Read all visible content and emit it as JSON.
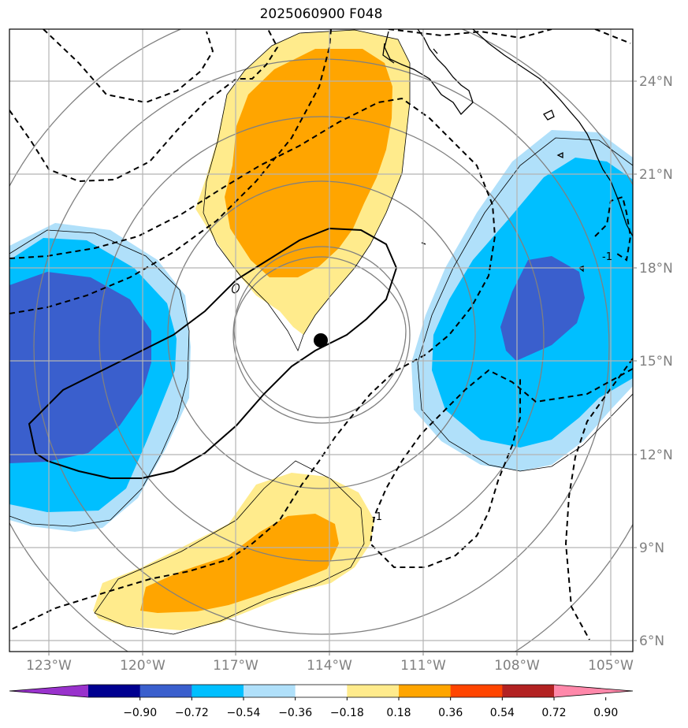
{
  "title": "2025060900 F048",
  "map": {
    "lat_labels": [
      "24°N",
      "21°N",
      "18°N",
      "15°N",
      "12°N",
      "9°N",
      "6°N"
    ],
    "lon_labels": [
      "123°W",
      "120°W",
      "117°W",
      "114°W",
      "111°W",
      "108°W",
      "105°W"
    ],
    "contour_labels": [
      "-1",
      "-1"
    ],
    "marker": "storm-center",
    "colors": {
      "strong_neg": "#3a5fcd",
      "mid_neg": "#00bfff",
      "weak_neg": "#b0e0fa",
      "weak_pos": "#ffeb8c",
      "mid_pos": "#ffa500"
    }
  },
  "colorbar": {
    "ticks": [
      "−0.90",
      "−0.72",
      "−0.54",
      "−0.36",
      "−0.18",
      "0.18",
      "0.36",
      "0.54",
      "0.72",
      "0.90"
    ],
    "colors": [
      "#9932cc",
      "#000090",
      "#3a5fcd",
      "#00bfff",
      "#b0e0fa",
      "#ffffff",
      "#ffeb8c",
      "#ffa500",
      "#ff4500",
      "#b22222",
      "#ff88aa"
    ]
  }
}
